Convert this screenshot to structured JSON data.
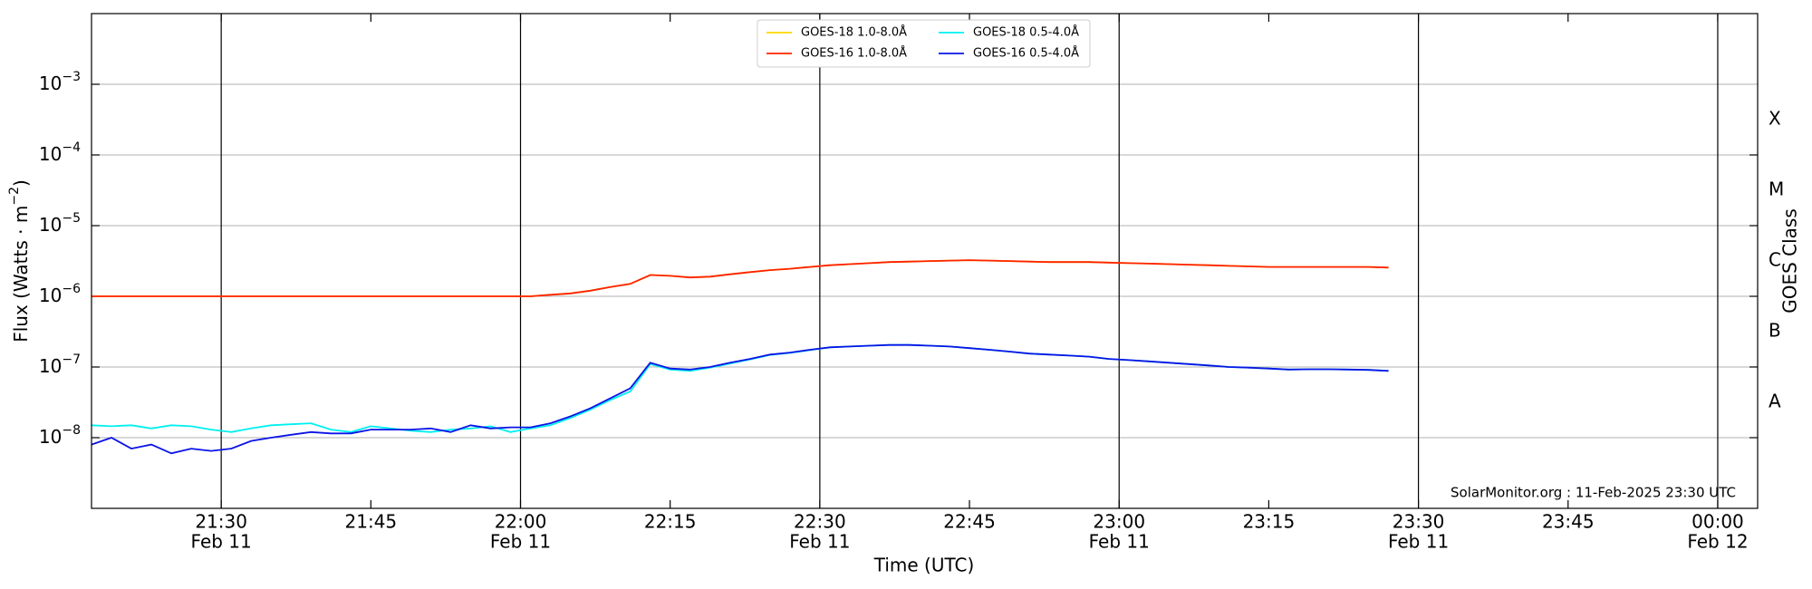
{
  "chart_data": {
    "type": "line",
    "xlabel": "Time (UTC)",
    "ylabel": "Flux (Watts · m−2)",
    "y2label": "GOES Class",
    "annotation": "SolarMonitor.org : 11-Feb-2025 23:30 UTC",
    "log_y": true,
    "grid": true,
    "legend": "upper center",
    "x": [
      "Feb 11 21:17",
      "Feb 11 21:19",
      "Feb 11 21:21",
      "Feb 11 21:23",
      "Feb 11 21:25",
      "Feb 11 21:27",
      "Feb 11 21:29",
      "Feb 11 21:31",
      "Feb 11 21:33",
      "Feb 11 21:35",
      "Feb 11 21:37",
      "Feb 11 21:39",
      "Feb 11 21:41",
      "Feb 11 21:43",
      "Feb 11 21:45",
      "Feb 11 21:47",
      "Feb 11 21:49",
      "Feb 11 21:51",
      "Feb 11 21:53",
      "Feb 11 21:55",
      "Feb 11 21:57",
      "Feb 11 21:59",
      "Feb 11 22:01",
      "Feb 11 22:03",
      "Feb 11 22:05",
      "Feb 11 22:07",
      "Feb 11 22:09",
      "Feb 11 22:11",
      "Feb 11 22:13",
      "Feb 11 22:15",
      "Feb 11 22:17",
      "Feb 11 22:19",
      "Feb 11 22:21",
      "Feb 11 22:23",
      "Feb 11 22:25",
      "Feb 11 22:27",
      "Feb 11 22:29",
      "Feb 11 22:31",
      "Feb 11 22:33",
      "Feb 11 22:35",
      "Feb 11 22:37",
      "Feb 11 22:39",
      "Feb 11 22:41",
      "Feb 11 22:43",
      "Feb 11 22:45",
      "Feb 11 22:47",
      "Feb 11 22:49",
      "Feb 11 22:51",
      "Feb 11 22:53",
      "Feb 11 22:55",
      "Feb 11 22:57",
      "Feb 11 22:59",
      "Feb 11 23:01",
      "Feb 11 23:03",
      "Feb 11 23:05",
      "Feb 11 23:07",
      "Feb 11 23:09",
      "Feb 11 23:11",
      "Feb 11 23:13",
      "Feb 11 23:15",
      "Feb 11 23:17",
      "Feb 11 23:19",
      "Feb 11 23:21",
      "Feb 11 23:23",
      "Feb 11 23:25",
      "Feb 11 23:27"
    ],
    "series": [
      {
        "name": "GOES-18 1.0-8.0Å",
        "color": "#ffd700",
        "values": [
          1e-06,
          1e-06,
          1e-06,
          1e-06,
          1e-06,
          1e-06,
          1e-06,
          1e-06,
          1e-06,
          1e-06,
          1e-06,
          1e-06,
          1e-06,
          1e-06,
          1e-06,
          1e-06,
          1e-06,
          1e-06,
          1e-06,
          1e-06,
          1e-06,
          1e-06,
          1e-06,
          1.05e-06,
          1.1e-06,
          1.2e-06,
          1.35e-06,
          1.5e-06,
          2e-06,
          1.95e-06,
          1.85e-06,
          1.9e-06,
          2.05e-06,
          2.2e-06,
          2.35e-06,
          2.45e-06,
          2.6e-06,
          2.75e-06,
          2.85e-06,
          2.95e-06,
          3.05e-06,
          3.1e-06,
          3.15e-06,
          3.2e-06,
          3.25e-06,
          3.2e-06,
          3.15e-06,
          3.1e-06,
          3.05e-06,
          3.05e-06,
          3.05e-06,
          3e-06,
          2.95e-06,
          2.9e-06,
          2.85e-06,
          2.8e-06,
          2.75e-06,
          2.7e-06,
          2.65e-06,
          2.6e-06,
          2.6e-06,
          2.6e-06,
          2.6e-06,
          2.6e-06,
          2.6e-06,
          2.55e-06
        ]
      },
      {
        "name": "GOES-16 1.0-8.0Å",
        "color": "#ff2200",
        "values": [
          1e-06,
          1e-06,
          1e-06,
          1e-06,
          1e-06,
          1e-06,
          1e-06,
          1e-06,
          1e-06,
          1e-06,
          1e-06,
          1e-06,
          1e-06,
          1e-06,
          1e-06,
          1e-06,
          1e-06,
          1e-06,
          1e-06,
          1e-06,
          1e-06,
          1e-06,
          1e-06,
          1.05e-06,
          1.1e-06,
          1.2e-06,
          1.35e-06,
          1.5e-06,
          2e-06,
          1.95e-06,
          1.85e-06,
          1.9e-06,
          2.05e-06,
          2.2e-06,
          2.35e-06,
          2.45e-06,
          2.6e-06,
          2.75e-06,
          2.85e-06,
          2.95e-06,
          3.05e-06,
          3.1e-06,
          3.15e-06,
          3.2e-06,
          3.25e-06,
          3.2e-06,
          3.15e-06,
          3.1e-06,
          3.05e-06,
          3.05e-06,
          3.05e-06,
          3e-06,
          2.95e-06,
          2.9e-06,
          2.85e-06,
          2.8e-06,
          2.75e-06,
          2.7e-06,
          2.65e-06,
          2.6e-06,
          2.6e-06,
          2.6e-06,
          2.6e-06,
          2.6e-06,
          2.6e-06,
          2.55e-06
        ]
      },
      {
        "name": "GOES-18 0.5-4.0Å",
        "color": "#00f0f0",
        "values": [
          1.5e-08,
          1.45e-08,
          1.5e-08,
          1.35e-08,
          1.5e-08,
          1.45e-08,
          1.3e-08,
          1.2e-08,
          1.35e-08,
          1.5e-08,
          1.55e-08,
          1.6e-08,
          1.3e-08,
          1.2e-08,
          1.45e-08,
          1.35e-08,
          1.25e-08,
          1.2e-08,
          1.3e-08,
          1.35e-08,
          1.45e-08,
          1.2e-08,
          1.35e-08,
          1.5e-08,
          1.9e-08,
          2.5e-08,
          3.4e-08,
          4.5e-08,
          1.1e-07,
          9.2e-08,
          8.8e-08,
          9.8e-08,
          1.12e-07,
          1.28e-07,
          1.48e-07,
          1.58e-07,
          1.73e-07,
          1.9e-07,
          1.95e-07,
          2e-07,
          2.05e-07,
          2.05e-07,
          2e-07,
          1.95e-07,
          1.85e-07,
          1.75e-07,
          1.65e-07,
          1.55e-07,
          1.5e-07,
          1.45e-07,
          1.4e-07,
          1.3e-07,
          1.25e-07,
          1.2e-07,
          1.15e-07,
          1.1e-07,
          1.05e-07,
          1e-07,
          9.8e-08,
          9.5e-08,
          9.2e-08,
          9.3e-08,
          9.3e-08,
          9.2e-08,
          9.1e-08,
          8.8e-08
        ]
      },
      {
        "name": "GOES-16 0.5-4.0Å",
        "color": "#0a14e6",
        "values": [
          8e-09,
          1e-08,
          7e-09,
          8e-09,
          6e-09,
          7e-09,
          6.5e-09,
          7e-09,
          9e-09,
          1e-08,
          1.1e-08,
          1.2e-08,
          1.15e-08,
          1.15e-08,
          1.3e-08,
          1.3e-08,
          1.3e-08,
          1.35e-08,
          1.2e-08,
          1.5e-08,
          1.35e-08,
          1.4e-08,
          1.4e-08,
          1.6e-08,
          2e-08,
          2.6e-08,
          3.6e-08,
          5e-08,
          1.15e-07,
          9.5e-08,
          9.2e-08,
          1e-07,
          1.15e-07,
          1.3e-07,
          1.5e-07,
          1.6e-07,
          1.75e-07,
          1.9e-07,
          1.95e-07,
          2e-07,
          2.05e-07,
          2.05e-07,
          2e-07,
          1.95e-07,
          1.85e-07,
          1.75e-07,
          1.65e-07,
          1.55e-07,
          1.5e-07,
          1.45e-07,
          1.4e-07,
          1.3e-07,
          1.25e-07,
          1.2e-07,
          1.15e-07,
          1.1e-07,
          1.05e-07,
          1e-07,
          9.8e-08,
          9.5e-08,
          9.2e-08,
          9.3e-08,
          9.3e-08,
          9.2e-08,
          9.1e-08,
          8.8e-08
        ]
      }
    ],
    "xlim": [
      "Feb 11 21:17",
      "Feb 12 00:04"
    ],
    "xticks": [
      {
        "value": "Feb 11 21:30",
        "label": "21:30",
        "date": "Feb 11"
      },
      {
        "value": "Feb 11 21:45",
        "label": "21:45"
      },
      {
        "value": "Feb 11 22:00",
        "label": "22:00",
        "date": "Feb 11"
      },
      {
        "value": "Feb 11 22:15",
        "label": "22:15"
      },
      {
        "value": "Feb 11 22:30",
        "label": "22:30",
        "date": "Feb 11"
      },
      {
        "value": "Feb 11 22:45",
        "label": "22:45"
      },
      {
        "value": "Feb 11 23:00",
        "label": "23:00",
        "date": "Feb 11"
      },
      {
        "value": "Feb 11 23:15",
        "label": "23:15"
      },
      {
        "value": "Feb 11 23:30",
        "label": "23:30",
        "date": "Feb 11"
      },
      {
        "value": "Feb 11 23:45",
        "label": "23:45"
      },
      {
        "value": "Feb 12 00:00",
        "label": "00:00",
        "date": "Feb 12"
      }
    ],
    "ylim": [
      1e-09,
      0.01
    ],
    "yticks": [
      {
        "value": 1e-08,
        "label": "10−8"
      },
      {
        "value": 1e-07,
        "label": "10−7"
      },
      {
        "value": 1e-06,
        "label": "10−6"
      },
      {
        "value": 1e-05,
        "label": "10−5"
      },
      {
        "value": 0.0001,
        "label": "10−4"
      },
      {
        "value": 0.001,
        "label": "10−3"
      }
    ],
    "y2lim": [
      1e-09,
      0.01
    ],
    "y2ticks": [
      {
        "value": 1e-08,
        "label": "A"
      },
      {
        "value": 1e-07,
        "label": "B"
      },
      {
        "value": 1e-06,
        "label": "C"
      },
      {
        "value": 1e-05,
        "label": "M"
      },
      {
        "value": 0.0001,
        "label": "X"
      }
    ]
  }
}
